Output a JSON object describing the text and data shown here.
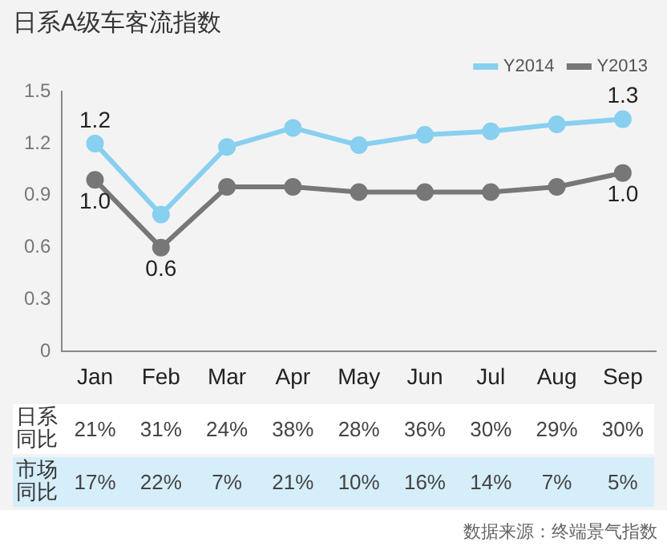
{
  "chart_data": {
    "type": "line",
    "title": "日系A级车客流指数",
    "categories": [
      "Jan",
      "Feb",
      "Mar",
      "Apr",
      "May",
      "Jun",
      "Jul",
      "Aug",
      "Sep"
    ],
    "series": [
      {
        "name": "Y2014",
        "color": "#88cff0",
        "values": [
          1.2,
          0.79,
          1.18,
          1.29,
          1.19,
          1.25,
          1.27,
          1.31,
          1.34
        ],
        "value_labels": [
          "1.2",
          null,
          null,
          null,
          null,
          null,
          null,
          null,
          "1.3"
        ]
      },
      {
        "name": "Y2013",
        "color": "#777777",
        "values": [
          0.99,
          0.6,
          0.95,
          0.95,
          0.92,
          0.92,
          0.92,
          0.95,
          1.03
        ],
        "value_labels": [
          "1.0",
          "0.6",
          null,
          null,
          null,
          null,
          null,
          null,
          "1.0"
        ]
      }
    ],
    "ylim": [
      0,
      1.5
    ],
    "yticks": [
      0,
      0.3,
      0.6,
      0.9,
      1.2,
      1.5
    ],
    "grid": false,
    "legend": "top right",
    "marker": "circle",
    "line_style": "solid",
    "annotations": [
      "日系同比",
      "21%",
      "31%",
      "24%",
      "38%",
      "28%",
      "36%",
      "30%",
      "29%",
      "30%",
      "市场同比",
      "17%",
      "22%",
      "7%",
      "21%",
      "10%",
      "16%",
      "14%",
      "7%",
      "5%",
      "数据来源：终端景气指数"
    ]
  }
}
